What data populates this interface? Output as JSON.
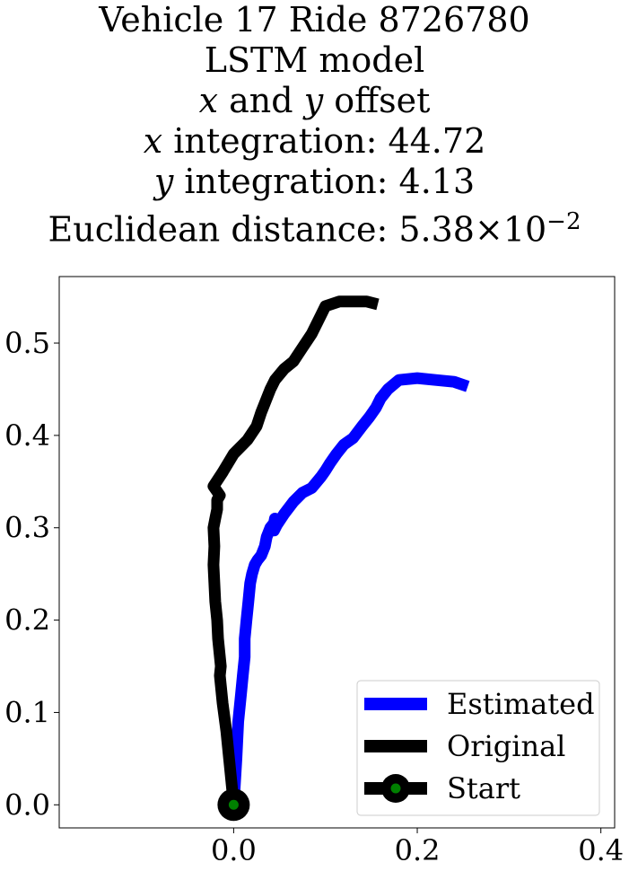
{
  "title_lines": {
    "l1": "Vehicle 17 Ride 8726780",
    "l2": "LSTM model",
    "l3_x": "x",
    "l3_and": " and ",
    "l3_y": "y",
    "l3_rest": " offset",
    "l4_var": "x",
    "l4_rest": " integration: 44.72",
    "l5_var": "y",
    "l5_rest": " integration: 4.13",
    "l6_text": "Euclidean distance: 5.38",
    "l6_times": "×",
    "l6_base": "10",
    "l6_exp": "−2"
  },
  "chart_data": {
    "type": "line",
    "xlim": [
      -0.19,
      0.415
    ],
    "ylim": [
      -0.025,
      0.572
    ],
    "x_ticks": [
      0.0,
      0.2,
      0.4
    ],
    "x_tick_labels": [
      "0.0",
      "0.2",
      "0.4"
    ],
    "y_ticks": [
      0.0,
      0.1,
      0.2,
      0.3,
      0.4,
      0.5
    ],
    "y_tick_labels": [
      "0.0",
      "0.1",
      "0.2",
      "0.3",
      "0.4",
      "0.5"
    ],
    "grid": false,
    "legend_position": "lower-right",
    "series": [
      {
        "name": "Estimated",
        "color": "#0000ff",
        "x": [
          0.0,
          0.003,
          0.005,
          0.008,
          0.01,
          0.012,
          0.012,
          0.014,
          0.016,
          0.018,
          0.02,
          0.023,
          0.026,
          0.03,
          0.034,
          0.036,
          0.04,
          0.044,
          0.045,
          0.044,
          0.047,
          0.055,
          0.065,
          0.075,
          0.085,
          0.095,
          0.1,
          0.105,
          0.112,
          0.12,
          0.13,
          0.14,
          0.148,
          0.155,
          0.16,
          0.168,
          0.18,
          0.2,
          0.22,
          0.24,
          0.255
        ],
        "y": [
          0.0,
          0.05,
          0.09,
          0.12,
          0.14,
          0.16,
          0.18,
          0.2,
          0.22,
          0.24,
          0.25,
          0.26,
          0.265,
          0.27,
          0.28,
          0.29,
          0.3,
          0.305,
          0.31,
          0.297,
          0.303,
          0.315,
          0.328,
          0.338,
          0.343,
          0.355,
          0.362,
          0.37,
          0.38,
          0.39,
          0.397,
          0.41,
          0.42,
          0.43,
          0.44,
          0.45,
          0.46,
          0.462,
          0.46,
          0.458,
          0.453
        ]
      },
      {
        "name": "Original",
        "color": "#000000",
        "x": [
          0.0,
          -0.002,
          -0.005,
          -0.008,
          -0.012,
          -0.015,
          -0.014,
          -0.017,
          -0.018,
          -0.02,
          -0.021,
          -0.022,
          -0.021,
          -0.022,
          -0.02,
          -0.018,
          -0.018,
          -0.015,
          -0.022,
          -0.012,
          0.0,
          0.01,
          0.015,
          0.025,
          0.03,
          0.04,
          0.045,
          0.055,
          0.065,
          0.075,
          0.085,
          0.09,
          0.095,
          0.1,
          0.115,
          0.13,
          0.145,
          0.157
        ],
        "y": [
          0.0,
          0.02,
          0.05,
          0.08,
          0.11,
          0.14,
          0.15,
          0.18,
          0.2,
          0.22,
          0.24,
          0.26,
          0.28,
          0.3,
          0.31,
          0.32,
          0.33,
          0.335,
          0.345,
          0.36,
          0.38,
          0.39,
          0.395,
          0.41,
          0.425,
          0.45,
          0.46,
          0.472,
          0.48,
          0.495,
          0.51,
          0.52,
          0.53,
          0.54,
          0.545,
          0.545,
          0.545,
          0.542
        ]
      }
    ],
    "start_point": {
      "name": "Start",
      "x": 0.0,
      "y": 0.0,
      "outer_color": "#000000",
      "inner_color": "#008000"
    }
  }
}
